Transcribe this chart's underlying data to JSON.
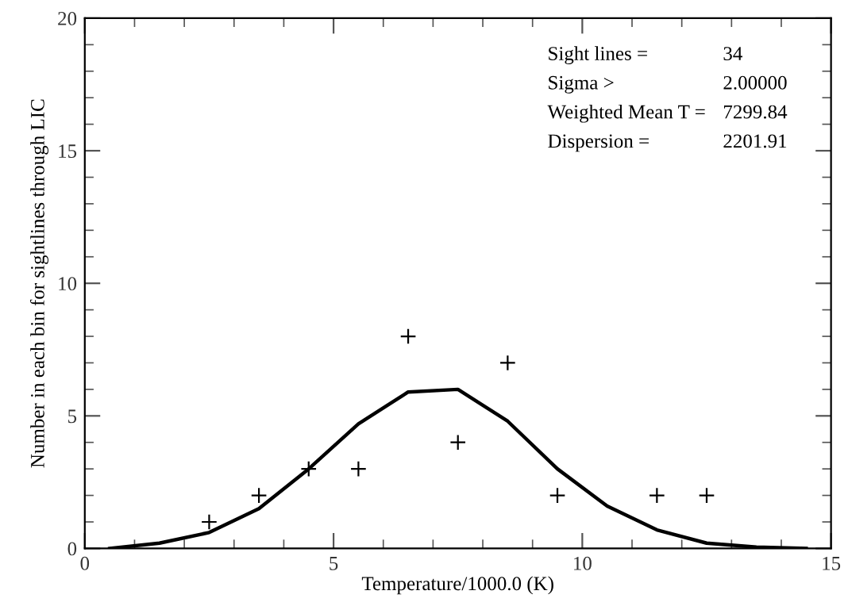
{
  "chart_data": {
    "type": "line",
    "xlabel": "Temperature/1000.0 (K)",
    "ylabel": "Number in each bin for sightlines through LIC",
    "xlim": [
      0,
      15
    ],
    "xticks": [
      0,
      5,
      10,
      15
    ],
    "ylim": [
      0,
      20
    ],
    "yticks": [
      0,
      5,
      10,
      15,
      20
    ],
    "grid": false,
    "legend": false,
    "series": [
      {
        "color": "#000000",
        "marker": "none",
        "line_style": "solid",
        "x": [
          0.5,
          1.5,
          2.5,
          3.5,
          4.5,
          5.5,
          6.5,
          7.5,
          8.5,
          9.5,
          10.5,
          11.5,
          12.5,
          13.5,
          14.5
        ],
        "values": [
          0.0,
          0.2,
          0.6,
          1.5,
          3.0,
          4.7,
          5.9,
          6.0,
          4.8,
          3.0,
          1.6,
          0.7,
          0.2,
          0.05,
          0.0
        ]
      },
      {
        "type": "scatter",
        "color": "#000000",
        "marker": "cross",
        "x": [
          2.5,
          3.5,
          4.5,
          5.5,
          6.5,
          7.5,
          8.5,
          9.5,
          11.5,
          12.5
        ],
        "values": [
          1,
          2,
          3,
          3,
          8,
          4,
          7,
          2,
          2,
          2
        ]
      }
    ],
    "annotations": [
      "Sight lines =",
      "34",
      "Sigma >",
      "2.00000",
      "Weighted Mean T =",
      "7299.84",
      "Dispersion =",
      "2201.91"
    ]
  }
}
